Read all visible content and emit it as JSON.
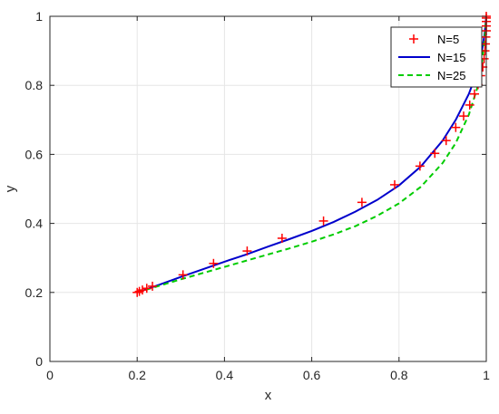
{
  "chart_data": {
    "type": "line",
    "xlabel": "x",
    "ylabel": "y",
    "xlim": [
      0,
      1
    ],
    "ylim": [
      0,
      1
    ],
    "xticks": [
      "0",
      "0.2",
      "0.4",
      "0.6",
      "0.8",
      "1"
    ],
    "yticks": [
      "0",
      "0.2",
      "0.4",
      "0.6",
      "0.8",
      "1"
    ],
    "grid": true,
    "legend_position": "top-right",
    "series": [
      {
        "name": "N=5",
        "style": "markers",
        "marker": "plus",
        "color": "#ff0000",
        "points": [
          [
            0.2,
            0.2
          ],
          [
            0.205,
            0.203
          ],
          [
            0.212,
            0.207
          ],
          [
            0.222,
            0.212
          ],
          [
            0.235,
            0.218
          ],
          [
            0.305,
            0.251
          ],
          [
            0.375,
            0.284
          ],
          [
            0.452,
            0.32
          ],
          [
            0.532,
            0.357
          ],
          [
            0.627,
            0.407
          ],
          [
            0.715,
            0.461
          ],
          [
            0.79,
            0.512
          ],
          [
            0.848,
            0.566
          ],
          [
            0.882,
            0.603
          ],
          [
            0.908,
            0.64
          ],
          [
            0.93,
            0.678
          ],
          [
            0.948,
            0.711
          ],
          [
            0.962,
            0.743
          ],
          [
            0.973,
            0.775
          ],
          [
            0.981,
            0.802
          ],
          [
            0.987,
            0.828
          ],
          [
            0.992,
            0.853
          ],
          [
            0.995,
            0.877
          ],
          [
            0.997,
            0.9
          ],
          [
            0.998,
            0.92
          ],
          [
            0.999,
            0.94
          ],
          [
            1.0,
            0.958
          ],
          [
            1.0,
            0.972
          ],
          [
            1.0,
            0.985
          ],
          [
            1.0,
            0.995
          ],
          [
            1.0,
            1.0
          ]
        ]
      },
      {
        "name": "N=15",
        "style": "solid",
        "color": "#0000cc",
        "points": [
          [
            0.2,
            0.2
          ],
          [
            0.25,
            0.222
          ],
          [
            0.3,
            0.245
          ],
          [
            0.35,
            0.267
          ],
          [
            0.4,
            0.289
          ],
          [
            0.45,
            0.31
          ],
          [
            0.5,
            0.333
          ],
          [
            0.55,
            0.355
          ],
          [
            0.6,
            0.378
          ],
          [
            0.65,
            0.404
          ],
          [
            0.7,
            0.434
          ],
          [
            0.75,
            0.468
          ],
          [
            0.8,
            0.51
          ],
          [
            0.85,
            0.565
          ],
          [
            0.9,
            0.64
          ],
          [
            0.93,
            0.7
          ],
          [
            0.96,
            0.775
          ],
          [
            0.98,
            0.843
          ],
          [
            0.99,
            0.9
          ],
          [
            0.996,
            0.948
          ],
          [
            1.0,
            1.0
          ]
        ]
      },
      {
        "name": "N=25",
        "style": "dashed",
        "color": "#00cc00",
        "points": [
          [
            0.2,
            0.2
          ],
          [
            0.25,
            0.219
          ],
          [
            0.3,
            0.238
          ],
          [
            0.35,
            0.256
          ],
          [
            0.4,
            0.274
          ],
          [
            0.45,
            0.292
          ],
          [
            0.5,
            0.31
          ],
          [
            0.55,
            0.328
          ],
          [
            0.6,
            0.347
          ],
          [
            0.65,
            0.368
          ],
          [
            0.7,
            0.392
          ],
          [
            0.75,
            0.422
          ],
          [
            0.8,
            0.458
          ],
          [
            0.85,
            0.506
          ],
          [
            0.9,
            0.575
          ],
          [
            0.93,
            0.633
          ],
          [
            0.96,
            0.715
          ],
          [
            0.98,
            0.795
          ],
          [
            0.99,
            0.865
          ],
          [
            0.996,
            0.93
          ],
          [
            1.0,
            1.0
          ]
        ]
      }
    ]
  }
}
